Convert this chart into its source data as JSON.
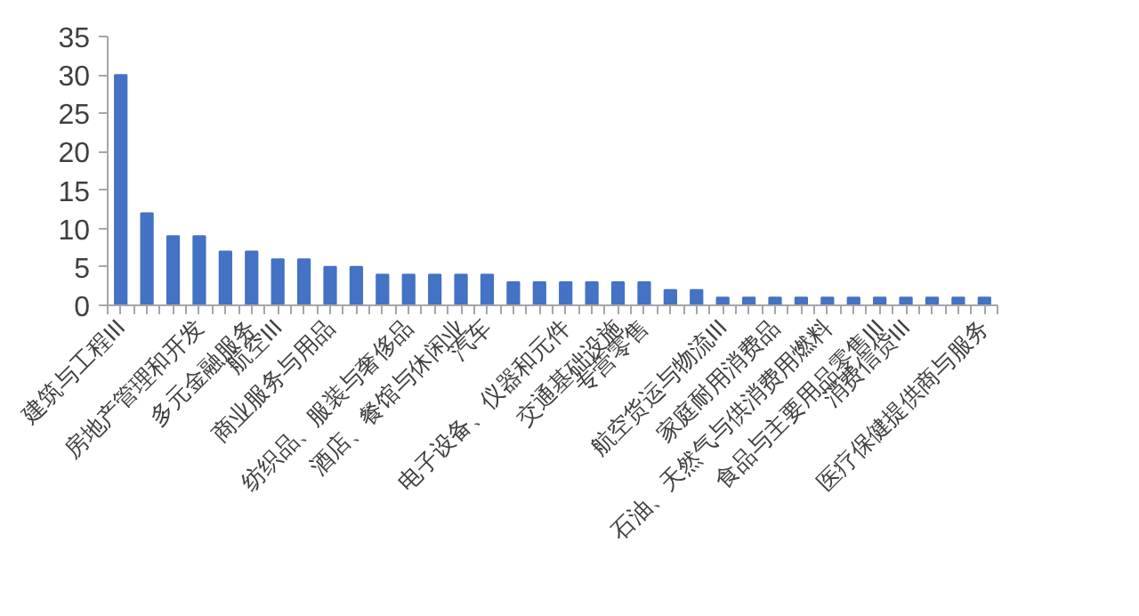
{
  "chart_data": {
    "type": "bar",
    "categories": [
      "建筑与工程III",
      null,
      null,
      "房地产管理和开发",
      null,
      "多元金融服务",
      "航空III",
      null,
      "商业服务与用品",
      null,
      null,
      "纺织品、服装与奢侈品",
      null,
      "酒店、餐馆与休闲业",
      "汽车",
      null,
      null,
      "电子设备、仪器和元件",
      null,
      "交通基础设施",
      "专营零售",
      null,
      null,
      "航空货运与物流III",
      null,
      "家庭耐用消费品",
      null,
      "石油、天然气与供消费用燃料",
      null,
      "食品与主要用品零售III",
      "消费信贷III",
      null,
      null,
      "医疗保健提供商与服务"
    ],
    "values": [
      30,
      12,
      9,
      9,
      7,
      7,
      6,
      6,
      5,
      5,
      4,
      4,
      4,
      4,
      4,
      3,
      3,
      3,
      3,
      3,
      3,
      2,
      2,
      1,
      1,
      1,
      1,
      1,
      1,
      1,
      1,
      1,
      1,
      1
    ],
    "color": "#4472c4",
    "ylim": [
      0,
      35
    ],
    "yticks": [
      0,
      5,
      10,
      15,
      20,
      25,
      30,
      35
    ],
    "grid": false
  }
}
